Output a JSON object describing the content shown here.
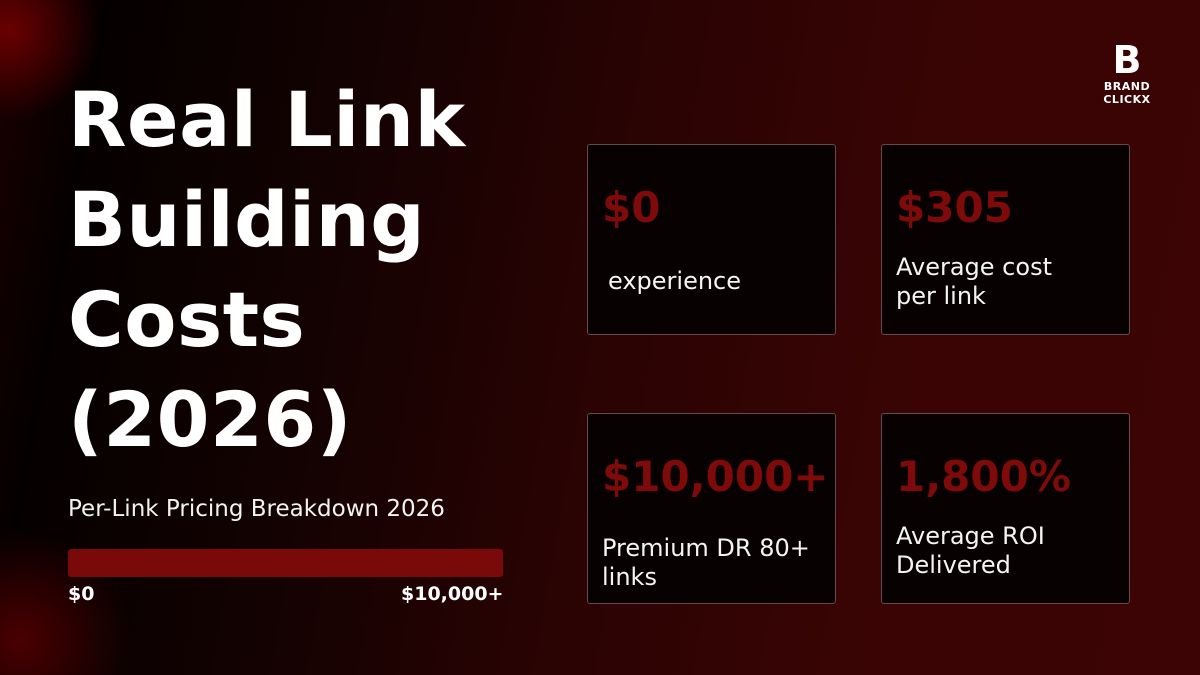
{
  "brand": {
    "logo_letter": "B",
    "name": "BRAND CLICKX"
  },
  "title_lines": [
    "Real Link",
    "Building",
    "Costs",
    "(2026)"
  ],
  "subtitle": "Per-Link Pricing Breakdown 2026",
  "range_bar": {
    "min_label": "$0",
    "max_label": "$10,000+",
    "fill_percent": 100,
    "color": "#7a0a0a"
  },
  "stats": [
    {
      "value": "$0",
      "label": "experience"
    },
    {
      "value": "$305",
      "label": "Average cost per link"
    },
    {
      "value": "$10,000+",
      "label": "Premium DR 80+ links"
    },
    {
      "value": "1,800%",
      "label": "Average ROI Delivered"
    }
  ],
  "colors": {
    "accent": "#7e0a0a",
    "background": "#3a0404"
  }
}
